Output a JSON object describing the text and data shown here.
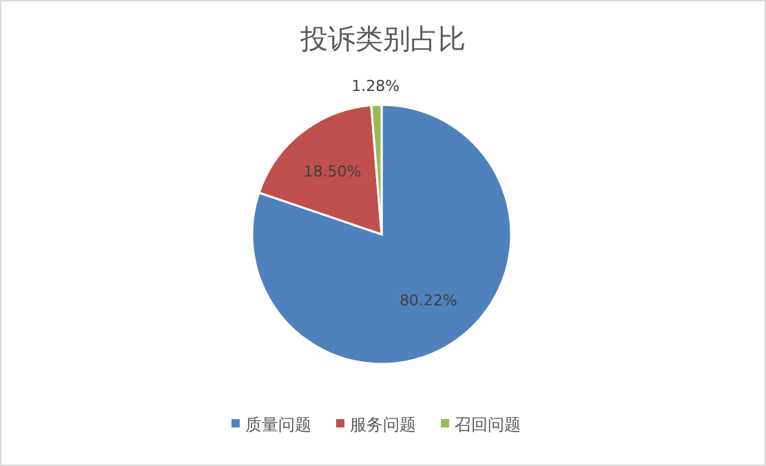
{
  "chart_data": {
    "type": "pie",
    "title": "投诉类别占比",
    "categories": [
      "质量问题",
      "服务问题",
      "召回问题"
    ],
    "values": [
      80.22,
      18.5,
      1.28
    ],
    "colors": [
      "#4f81bd",
      "#c0504d",
      "#9bbb59"
    ],
    "value_labels": [
      "80.22%",
      "18.50%",
      "1.28%"
    ],
    "legend": "bottom"
  }
}
